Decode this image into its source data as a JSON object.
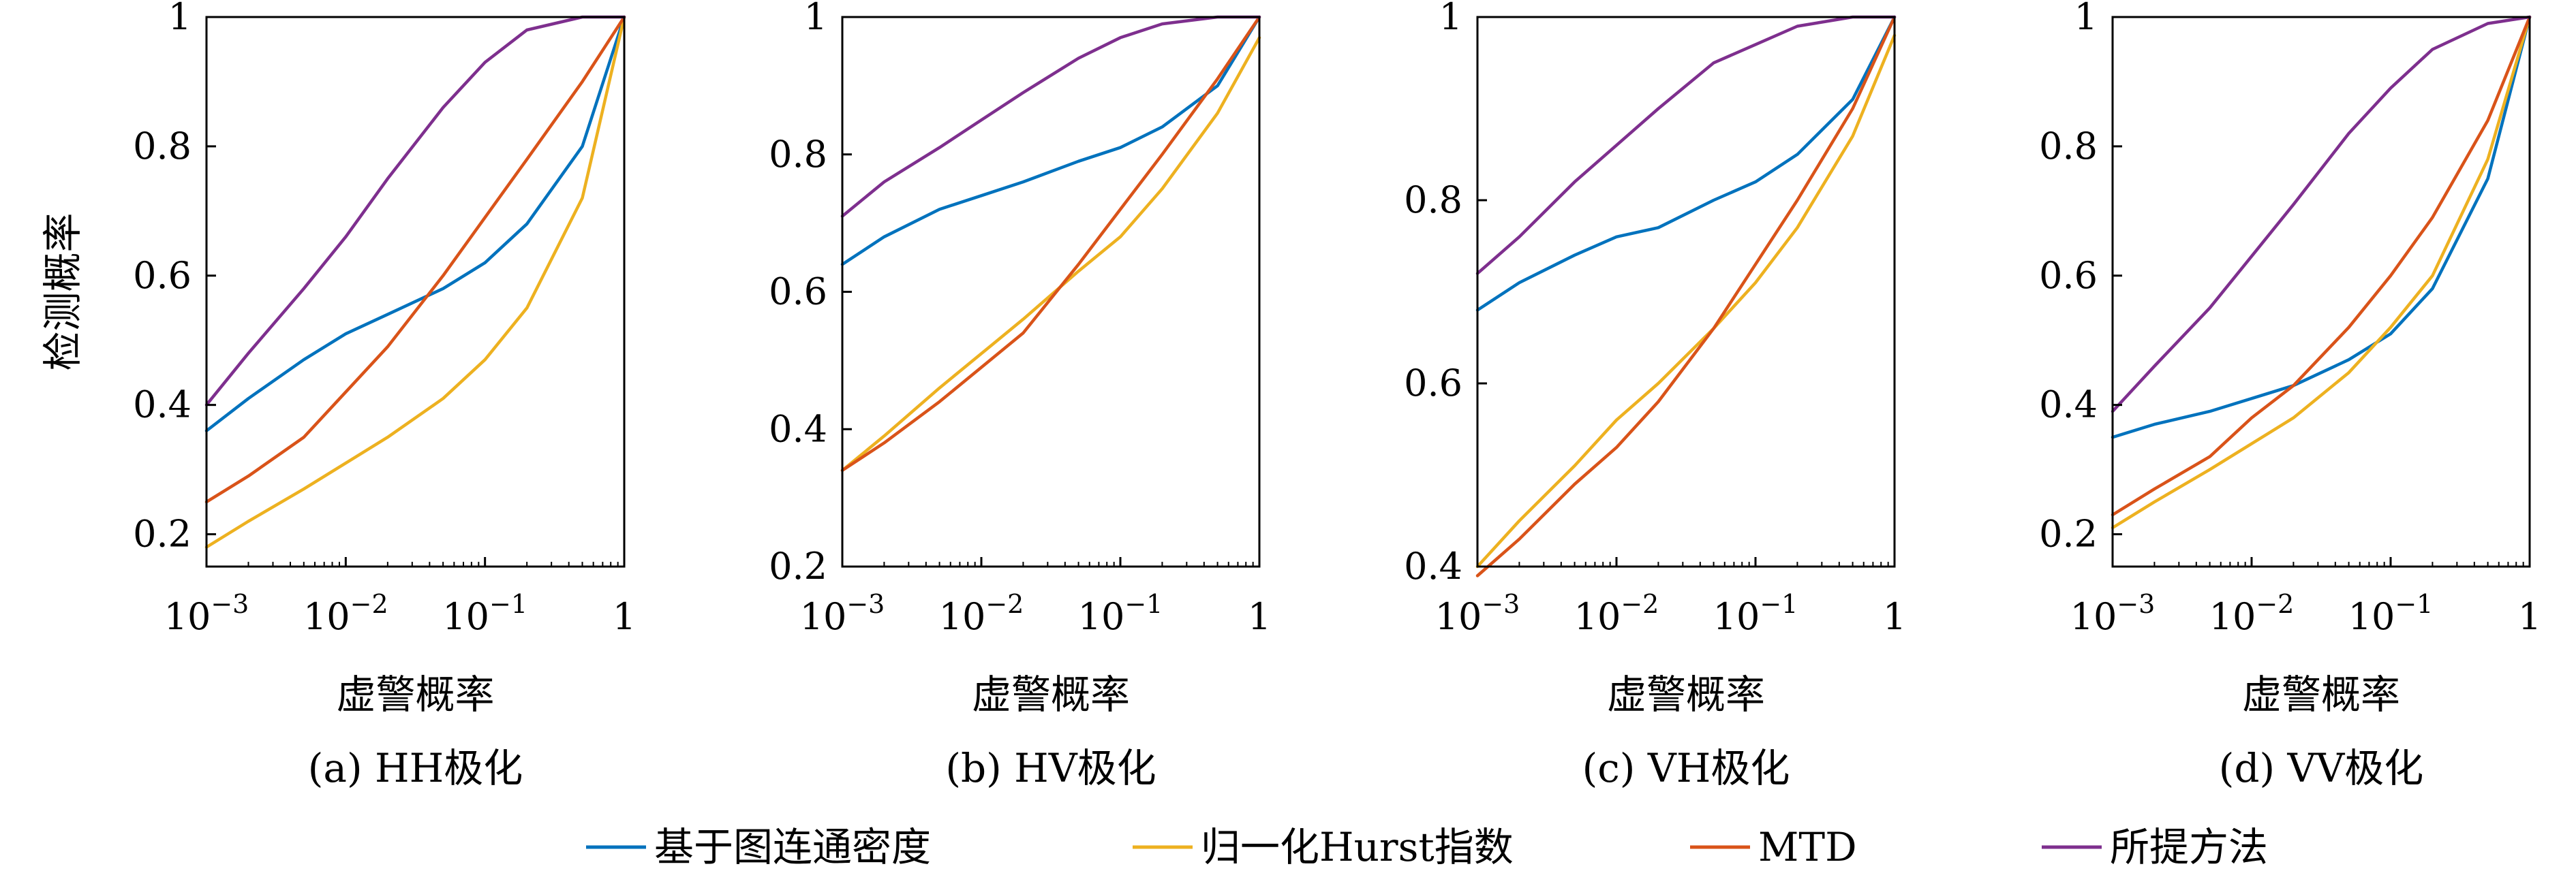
{
  "figure": {
    "legend": [
      {
        "label": "基于图连通密度",
        "color": "#0072BD"
      },
      {
        "label": "归一化Hurst指数",
        "color": "#EDB120"
      },
      {
        "label": "MTD",
        "color": "#D95319"
      },
      {
        "label": "所提方法",
        "color": "#7E2F8E"
      }
    ]
  },
  "chart_data": [
    {
      "type": "line",
      "caption": "(a) HH极化",
      "xlabel": "虚警概率",
      "ylabel": "检测概率",
      "x_scale": "log",
      "xlim": [
        0.001,
        1
      ],
      "ylim": [
        0.15,
        1.0
      ],
      "xticks": [
        "10-3",
        "10-2",
        "10-1",
        "1"
      ],
      "yticks": [
        0.2,
        0.4,
        0.6,
        0.8,
        1.0
      ],
      "x": [
        0.001,
        0.002,
        0.005,
        0.01,
        0.02,
        0.05,
        0.1,
        0.2,
        0.5,
        1
      ],
      "series": [
        {
          "name": "基于图连通密度",
          "color": "#0072BD",
          "values": [
            0.36,
            0.41,
            0.47,
            0.51,
            0.54,
            0.58,
            0.62,
            0.68,
            0.8,
            1.0
          ]
        },
        {
          "name": "归一化Hurst指数",
          "color": "#EDB120",
          "values": [
            0.18,
            0.22,
            0.27,
            0.31,
            0.35,
            0.41,
            0.47,
            0.55,
            0.72,
            1.0
          ]
        },
        {
          "name": "MTD",
          "color": "#D95319",
          "values": [
            0.25,
            0.29,
            0.35,
            0.42,
            0.49,
            0.6,
            0.69,
            0.78,
            0.9,
            1.0
          ]
        },
        {
          "name": "所提方法",
          "color": "#7E2F8E",
          "values": [
            0.4,
            0.48,
            0.58,
            0.66,
            0.75,
            0.86,
            0.93,
            0.98,
            1.0,
            1.0
          ]
        }
      ]
    },
    {
      "type": "line",
      "caption": "(b) HV极化",
      "xlabel": "虚警概率",
      "ylabel": "",
      "x_scale": "log",
      "xlim": [
        0.001,
        1
      ],
      "ylim": [
        0.2,
        1.0
      ],
      "xticks": [
        "10-3",
        "10-2",
        "10-1",
        "1"
      ],
      "yticks": [
        0.2,
        0.4,
        0.6,
        0.8,
        1.0
      ],
      "x": [
        0.001,
        0.002,
        0.005,
        0.01,
        0.02,
        0.05,
        0.1,
        0.2,
        0.5,
        1
      ],
      "series": [
        {
          "name": "基于图连通密度",
          "color": "#0072BD",
          "values": [
            0.64,
            0.68,
            0.72,
            0.74,
            0.76,
            0.79,
            0.81,
            0.84,
            0.9,
            1.0
          ]
        },
        {
          "name": "归一化Hurst指数",
          "color": "#EDB120",
          "values": [
            0.34,
            0.39,
            0.46,
            0.51,
            0.56,
            0.63,
            0.68,
            0.75,
            0.86,
            0.97
          ]
        },
        {
          "name": "MTD",
          "color": "#D95319",
          "values": [
            0.34,
            0.38,
            0.44,
            0.49,
            0.54,
            0.64,
            0.72,
            0.8,
            0.91,
            1.0
          ]
        },
        {
          "name": "所提方法",
          "color": "#7E2F8E",
          "values": [
            0.71,
            0.76,
            0.81,
            0.85,
            0.89,
            0.94,
            0.97,
            0.99,
            1.0,
            1.0
          ]
        }
      ]
    },
    {
      "type": "line",
      "caption": "(c) VH极化",
      "xlabel": "虚警概率",
      "ylabel": "",
      "x_scale": "log",
      "xlim": [
        0.001,
        1
      ],
      "ylim": [
        0.4,
        1.0
      ],
      "xticks": [
        "10-3",
        "10-2",
        "10-1",
        "1"
      ],
      "yticks": [
        0.4,
        0.6,
        0.8,
        1.0
      ],
      "x": [
        0.001,
        0.002,
        0.005,
        0.01,
        0.02,
        0.05,
        0.1,
        0.2,
        0.5,
        1
      ],
      "series": [
        {
          "name": "基于图连通密度",
          "color": "#0072BD",
          "values": [
            0.68,
            0.71,
            0.74,
            0.76,
            0.77,
            0.8,
            0.82,
            0.85,
            0.91,
            1.0
          ]
        },
        {
          "name": "归一化Hurst指数",
          "color": "#EDB120",
          "values": [
            0.4,
            0.45,
            0.51,
            0.56,
            0.6,
            0.66,
            0.71,
            0.77,
            0.87,
            0.98
          ]
        },
        {
          "name": "MTD",
          "color": "#D95319",
          "values": [
            0.39,
            0.43,
            0.49,
            0.53,
            0.58,
            0.66,
            0.73,
            0.8,
            0.9,
            1.0
          ]
        },
        {
          "name": "所提方法",
          "color": "#7E2F8E",
          "values": [
            0.72,
            0.76,
            0.82,
            0.86,
            0.9,
            0.95,
            0.97,
            0.99,
            1.0,
            1.0
          ]
        }
      ]
    },
    {
      "type": "line",
      "caption": "(d) VV极化",
      "xlabel": "虚警概率",
      "ylabel": "",
      "x_scale": "log",
      "xlim": [
        0.001,
        1
      ],
      "ylim": [
        0.15,
        1.0
      ],
      "xticks": [
        "10-3",
        "10-2",
        "10-1",
        "1"
      ],
      "yticks": [
        0.2,
        0.4,
        0.6,
        0.8,
        1.0
      ],
      "x": [
        0.001,
        0.002,
        0.005,
        0.01,
        0.02,
        0.05,
        0.1,
        0.2,
        0.5,
        1
      ],
      "series": [
        {
          "name": "基于图连通密度",
          "color": "#0072BD",
          "values": [
            0.35,
            0.37,
            0.39,
            0.41,
            0.43,
            0.47,
            0.51,
            0.58,
            0.75,
            1.0
          ]
        },
        {
          "name": "归一化Hurst指数",
          "color": "#EDB120",
          "values": [
            0.21,
            0.25,
            0.3,
            0.34,
            0.38,
            0.45,
            0.52,
            0.6,
            0.78,
            1.0
          ]
        },
        {
          "name": "MTD",
          "color": "#D95319",
          "values": [
            0.23,
            0.27,
            0.32,
            0.38,
            0.43,
            0.52,
            0.6,
            0.69,
            0.84,
            1.0
          ]
        },
        {
          "name": "所提方法",
          "color": "#7E2F8E",
          "values": [
            0.39,
            0.46,
            0.55,
            0.63,
            0.71,
            0.82,
            0.89,
            0.95,
            0.99,
            1.0
          ]
        }
      ]
    }
  ]
}
